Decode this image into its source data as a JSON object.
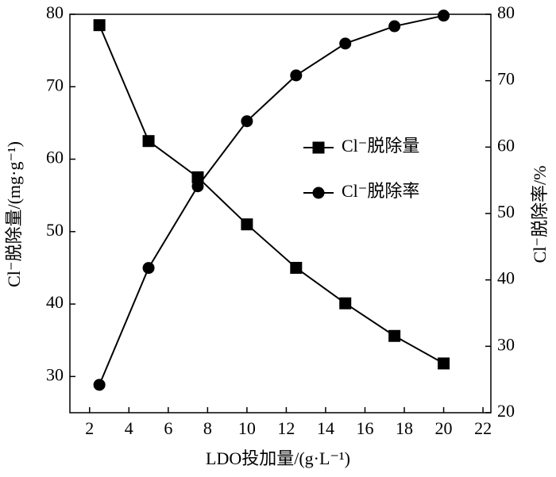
{
  "chart_data": {
    "type": "line",
    "x_label": "LDO投加量/(g·L⁻¹)",
    "y_label": "Cl⁻脱除量/(mg·g⁻¹)",
    "y2_label": "Cl⁻脱除率/%",
    "x": [
      2.5,
      5,
      7.5,
      10,
      12.5,
      15,
      17.5,
      20
    ],
    "series": [
      {
        "name": "Cl⁻脱除量",
        "color": "#000000",
        "marker": "square",
        "values": [
          78.5,
          62.5,
          57.5,
          51.0,
          45.0,
          40.1,
          35.6,
          31.8
        ]
      },
      {
        "name": "Cl⁻脱除率",
        "color": "#000000",
        "marker": "circle",
        "axis": "y2",
        "values": [
          24.2,
          41.8,
          54.1,
          63.9,
          70.8,
          75.6,
          78.2,
          79.8
        ]
      }
    ],
    "xlim": [
      1,
      22.4
    ],
    "xticks": [
      2,
      4,
      6,
      8,
      10,
      12,
      14,
      16,
      18,
      20,
      22
    ],
    "ylim": [
      25,
      80
    ],
    "yticks": [
      30,
      40,
      50,
      60,
      70,
      80
    ],
    "y2lim": [
      20,
      80
    ],
    "y2ticks": [
      20,
      30,
      40,
      50,
      60,
      70,
      80
    ],
    "legend": "right"
  }
}
